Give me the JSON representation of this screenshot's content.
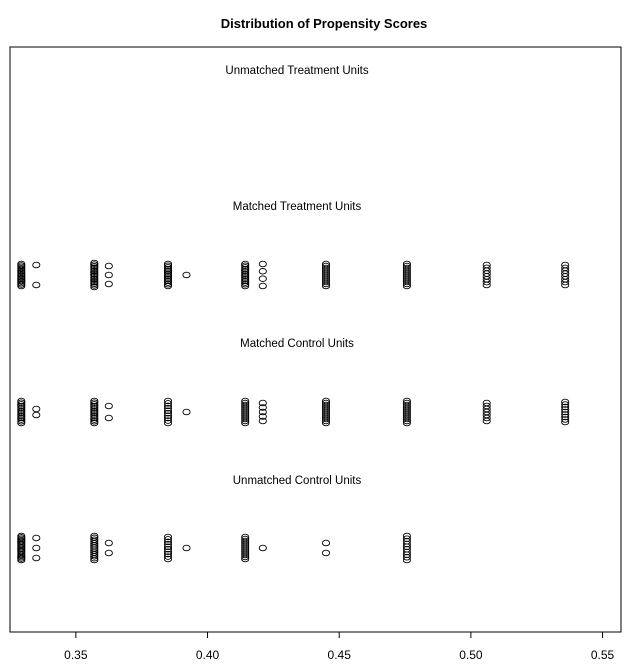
{
  "chart_data": {
    "type": "scatter",
    "title": "Distribution of Propensity Scores",
    "xlabel": "",
    "ylabel": "",
    "xlim": [
      0.325,
      0.557
    ],
    "xticks": [
      "0.35",
      "0.40",
      "0.45",
      "0.50",
      "0.55"
    ],
    "xtick_values": [
      0.35,
      0.4,
      0.45,
      0.5,
      0.55
    ],
    "grid": false,
    "legend": "none",
    "marker": "open-circle",
    "groups": [
      {
        "name": "Unmatched Treatment Units",
        "columns": []
      },
      {
        "name": "Matched Treatment Units",
        "columns": [
          {
            "x": 0.3293,
            "n": 16,
            "spread": 0.55
          },
          {
            "x": 0.335,
            "n": 2,
            "spread": 0.5
          },
          {
            "x": 0.357,
            "n": 16,
            "spread": 0.6
          },
          {
            "x": 0.3625,
            "n": 3,
            "spread": 0.45
          },
          {
            "x": 0.385,
            "n": 14,
            "spread": 0.55
          },
          {
            "x": 0.392,
            "n": 1,
            "spread": 0.0
          },
          {
            "x": 0.4143,
            "n": 14,
            "spread": 0.55
          },
          {
            "x": 0.421,
            "n": 4,
            "spread": 0.55
          },
          {
            "x": 0.445,
            "n": 12,
            "spread": 0.55
          },
          {
            "x": 0.4757,
            "n": 12,
            "spread": 0.55
          },
          {
            "x": 0.506,
            "n": 8,
            "spread": 0.5
          },
          {
            "x": 0.5358,
            "n": 8,
            "spread": 0.5
          }
        ]
      },
      {
        "name": "Matched Control Units",
        "columns": [
          {
            "x": 0.3293,
            "n": 14,
            "spread": 0.55
          },
          {
            "x": 0.335,
            "n": 2,
            "spread": 0.15
          },
          {
            "x": 0.357,
            "n": 14,
            "spread": 0.55
          },
          {
            "x": 0.3625,
            "n": 2,
            "spread": 0.3
          },
          {
            "x": 0.385,
            "n": 10,
            "spread": 0.55
          },
          {
            "x": 0.392,
            "n": 1,
            "spread": 0.0
          },
          {
            "x": 0.4143,
            "n": 12,
            "spread": 0.55
          },
          {
            "x": 0.421,
            "n": 5,
            "spread": 0.45
          },
          {
            "x": 0.445,
            "n": 12,
            "spread": 0.55
          },
          {
            "x": 0.4757,
            "n": 12,
            "spread": 0.55
          },
          {
            "x": 0.506,
            "n": 7,
            "spread": 0.45
          },
          {
            "x": 0.5358,
            "n": 9,
            "spread": 0.5
          }
        ]
      },
      {
        "name": "Unmatched Control Units",
        "columns": [
          {
            "x": 0.3293,
            "n": 18,
            "spread": 0.6
          },
          {
            "x": 0.335,
            "n": 3,
            "spread": 0.5
          },
          {
            "x": 0.357,
            "n": 14,
            "spread": 0.6
          },
          {
            "x": 0.3625,
            "n": 2,
            "spread": 0.25
          },
          {
            "x": 0.385,
            "n": 10,
            "spread": 0.55
          },
          {
            "x": 0.392,
            "n": 1,
            "spread": 0.0
          },
          {
            "x": 0.4143,
            "n": 12,
            "spread": 0.55
          },
          {
            "x": 0.421,
            "n": 1,
            "spread": 0.0
          },
          {
            "x": 0.445,
            "n": 2,
            "spread": 0.25
          },
          {
            "x": 0.4757,
            "n": 10,
            "spread": 0.6
          }
        ]
      }
    ]
  }
}
